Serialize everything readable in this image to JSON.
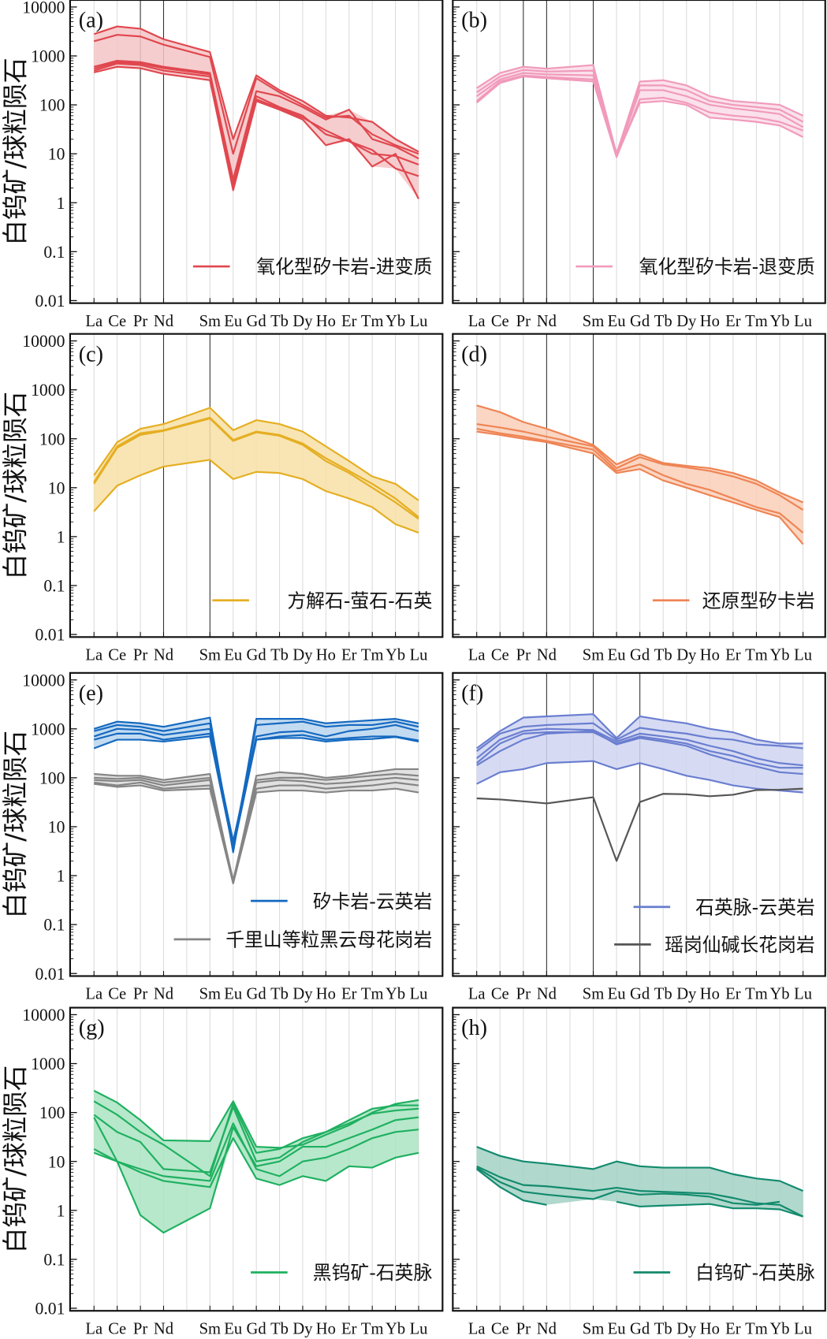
{
  "chart_data": [
    {
      "type": "line",
      "label": "(a)",
      "ylabel": "白钨矿/球粒陨石",
      "xlabel": "",
      "yscale": "log",
      "ylim": [
        0.01,
        10000
      ],
      "yticks": [
        "0.01",
        "0.1",
        "1",
        "10",
        "100",
        "1000",
        "10000"
      ],
      "categories": [
        "La",
        "Ce",
        "Pr",
        "Nd",
        "Sm",
        "Eu",
        "Gd",
        "Tb",
        "Dy",
        "Ho",
        "Er",
        "Tm",
        "Yb",
        "Lu"
      ],
      "groups": [
        {
          "name": "氧化型矽卡岩-进变质",
          "color": "#e0474f",
          "fill": "#f5c4c6",
          "series": [
            [
              2800,
              4000,
              3600,
              2200,
              1200,
              20,
              400,
              200,
              120,
              60,
              55,
              45,
              20,
              11
            ],
            [
              2000,
              2700,
              2500,
              1700,
              950,
              10,
              350,
              180,
              100,
              55,
              60,
              25,
              15,
              10
            ],
            [
              600,
              800,
              750,
              600,
              450,
              3,
              190,
              150,
              90,
              50,
              80,
              20,
              14,
              8
            ],
            [
              550,
              750,
              700,
              560,
              420,
              2.5,
              150,
              90,
              60,
              25,
              18,
              10,
              9,
              6
            ],
            [
              460,
              600,
              560,
              430,
              320,
              1.8,
              120,
              80,
              50,
              15,
              20,
              5.5,
              10,
              1.2
            ],
            [
              500,
              700,
              650,
              500,
              380,
              2.2,
              130,
              85,
              55,
              30,
              18,
              12,
              5,
              3.5
            ]
          ]
        }
      ]
    },
    {
      "type": "line",
      "label": "(b)",
      "ylabel": "",
      "xlabel": "",
      "yscale": "log",
      "ylim": [
        0.01,
        10000
      ],
      "categories": [
        "La",
        "Ce",
        "Pr",
        "Nd",
        "Sm",
        "Eu",
        "Gd",
        "Tb",
        "Dy",
        "Ho",
        "Er",
        "Tm",
        "Yb",
        "Lu"
      ],
      "groups": [
        {
          "name": "氧化型矽卡岩-退变质",
          "color": "#f19abb",
          "fill": "#fadce7",
          "series": [
            [
              220,
              450,
              600,
              550,
              650,
              10,
              300,
              320,
              250,
              150,
              120,
              110,
              100,
              60
            ],
            [
              180,
              380,
              520,
              480,
              500,
              9,
              250,
              250,
              200,
              120,
              100,
              90,
              80,
              45
            ],
            [
              150,
              330,
              450,
              420,
              400,
              9,
              200,
              200,
              150,
              100,
              85,
              75,
              65,
              35
            ],
            [
              120,
              300,
              400,
              370,
              330,
              8.5,
              130,
              140,
              110,
              70,
              60,
              55,
              45,
              30
            ],
            [
              110,
              280,
              380,
              350,
              300,
              9,
              110,
              120,
              100,
              55,
              50,
              45,
              38,
              22
            ]
          ]
        }
      ]
    },
    {
      "type": "line",
      "label": "(c)",
      "ylabel": "白钨矿/球粒陨石",
      "xlabel": "",
      "yscale": "log",
      "ylim": [
        0.01,
        10000
      ],
      "yticks": [
        "0.01",
        "0.1",
        "1",
        "10",
        "100",
        "1000",
        "10000"
      ],
      "categories": [
        "La",
        "Ce",
        "Pr",
        "Nd",
        "Sm",
        "Eu",
        "Gd",
        "Tb",
        "Dy",
        "Ho",
        "Er",
        "Tm",
        "Yb",
        "Lu"
      ],
      "groups": [
        {
          "name": "方解石-萤石-石英",
          "color": "#e5ae22",
          "fill": "#f7e0a6",
          "series": [
            [
              18,
              85,
              160,
              200,
              430,
              150,
              240,
              200,
              140,
              70,
              35,
              17,
              12,
              5.5
            ],
            [
              13,
              70,
              130,
              150,
              270,
              95,
              140,
              120,
              80,
              40,
              22,
              12,
              6,
              2.5
            ],
            [
              12,
              65,
              120,
              145,
              260,
              90,
              135,
              115,
              75,
              35,
              20,
              10,
              5,
              2.3
            ],
            [
              3.3,
              11,
              18,
              27,
              37,
              15,
              21,
              20,
              15,
              8.5,
              6,
              4,
              1.8,
              1.2
            ]
          ]
        }
      ]
    },
    {
      "type": "line",
      "label": "(d)",
      "ylabel": "",
      "xlabel": "",
      "yscale": "log",
      "ylim": [
        0.01,
        10000
      ],
      "categories": [
        "La",
        "Ce",
        "Pr",
        "Nd",
        "Sm",
        "Eu",
        "Gd",
        "Tb",
        "Dy",
        "Ho",
        "Er",
        "Tm",
        "Yb",
        "Lu"
      ],
      "groups": [
        {
          "name": "还原型矽卡岩",
          "color": "#ef8454",
          "fill": "#f9cfb8",
          "series": [
            [
              480,
              350,
              220,
              160,
              75,
              30,
              48,
              32,
              28,
              25,
              20,
              14,
              8,
              5
            ],
            [
              200,
              170,
              140,
              110,
              70,
              25,
              42,
              30,
              26,
              22,
              17,
              12,
              7,
              3.5
            ],
            [
              160,
              130,
              110,
              90,
              60,
              22,
              30,
              18,
              12,
              9,
              6,
              4,
              3,
              1.2
            ],
            [
              140,
              120,
              100,
              85,
              50,
              20,
              24,
              14,
              10,
              7,
              5,
              3.5,
              2.5,
              0.7
            ]
          ]
        }
      ]
    },
    {
      "type": "line",
      "label": "(e)",
      "ylabel": "白钨矿/球粒陨石",
      "xlabel": "",
      "yscale": "log",
      "ylim": [
        0.01,
        10000
      ],
      "yticks": [
        "0.01",
        "0.1",
        "1",
        "10",
        "100",
        "1000",
        "10000"
      ],
      "categories": [
        "La",
        "Ce",
        "Pr",
        "Nd",
        "Sm",
        "Eu",
        "Gd",
        "Tb",
        "Dy",
        "Ho",
        "Er",
        "Tm",
        "Yb",
        "Lu"
      ],
      "groups": [
        {
          "name": "矽卡岩-云英岩",
          "color": "#1469c0",
          "fill": "#b8d5ef",
          "series": [
            [
              1000,
              1400,
              1300,
              1100,
              1700,
              3,
              1600,
              1600,
              1600,
              1300,
              1400,
              1500,
              1600,
              1300
            ],
            [
              900,
              1200,
              1100,
              900,
              1300,
              4,
              1200,
              1300,
              1400,
              1100,
              1200,
              1200,
              1400,
              1100
            ],
            [
              700,
              1000,
              950,
              750,
              1000,
              5,
              700,
              850,
              900,
              700,
              900,
              1000,
              1200,
              900
            ],
            [
              600,
              800,
              800,
              600,
              800,
              4,
              600,
              700,
              750,
              600,
              650,
              700,
              700,
              580
            ],
            [
              400,
              600,
              600,
              550,
              700,
              3.5,
              600,
              650,
              650,
              550,
              600,
              620,
              680,
              550
            ]
          ]
        },
        {
          "name": "千里山等粒黑云母花岗岩",
          "color": "#858585",
          "fill": "#dcdcdc",
          "series": [
            [
              120,
              110,
              110,
              90,
              120,
              0.7,
              110,
              130,
              120,
              100,
              110,
              130,
              150,
              150
            ],
            [
              100,
              95,
              100,
              80,
              100,
              0.8,
              90,
              100,
              100,
              90,
              100,
              110,
              120,
              110
            ],
            [
              90,
              85,
              90,
              70,
              90,
              0.75,
              80,
              90,
              85,
              75,
              80,
              90,
              100,
              90
            ],
            [
              80,
              70,
              80,
              60,
              70,
              0.7,
              60,
              70,
              70,
              60,
              65,
              70,
              80,
              70
            ],
            [
              75,
              65,
              70,
              55,
              60,
              0.7,
              50,
              55,
              55,
              50,
              55,
              55,
              60,
              50
            ]
          ]
        }
      ]
    },
    {
      "type": "line",
      "label": "(f)",
      "ylabel": "",
      "xlabel": "",
      "yscale": "log",
      "ylim": [
        0.01,
        10000
      ],
      "categories": [
        "La",
        "Ce",
        "Pr",
        "Nd",
        "Sm",
        "Eu",
        "Gd",
        "Tb",
        "Dy",
        "Ho",
        "Er",
        "Tm",
        "Yb",
        "Lu"
      ],
      "groups": [
        {
          "name": "石英脉-云英岩",
          "color": "#6a7ed0",
          "fill": "#cfd5f1",
          "series": [
            [
              400,
              900,
              1700,
              1800,
              2000,
              650,
              1800,
              1500,
              1300,
              1000,
              850,
              600,
              500,
              500
            ],
            [
              350,
              800,
              1100,
              1200,
              1300,
              600,
              1050,
              900,
              800,
              650,
              600,
              480,
              450,
              400
            ],
            [
              250,
              600,
              900,
              1000,
              950,
              550,
              800,
              700,
              600,
              450,
              350,
              250,
              200,
              180
            ],
            [
              200,
              500,
              800,
              850,
              850,
              500,
              700,
              600,
              500,
              350,
              280,
              200,
              160,
              160
            ],
            [
              180,
              350,
              600,
              800,
              900,
              480,
              650,
              550,
              450,
              300,
              220,
              170,
              130,
              120
            ],
            [
              75,
              130,
              150,
              200,
              220,
              150,
              200,
              150,
              110,
              90,
              70,
              60,
              55,
              50
            ]
          ]
        },
        {
          "name": "瑶岗仙碱长花岗岩",
          "color": "#555555",
          "fill": "none",
          "series": [
            [
              38,
              36,
              33,
              30,
              40,
              2,
              32,
              47,
              46,
              42,
              45,
              56,
              57,
              60
            ]
          ]
        }
      ]
    },
    {
      "type": "line",
      "label": "(g)",
      "ylabel": "白钨矿/球粒陨石",
      "xlabel": "",
      "yscale": "log",
      "ylim": [
        0.01,
        10000
      ],
      "yticks": [
        "0.01",
        "0.1",
        "1",
        "10",
        "100",
        "1000",
        "10000"
      ],
      "categories": [
        "La",
        "Ce",
        "Pr",
        "Nd",
        "Sm",
        "Eu",
        "Gd",
        "Tb",
        "Dy",
        "Ho",
        "Er",
        "Tm",
        "Yb",
        "Lu"
      ],
      "groups": [
        {
          "name": "黑钨矿-石英脉",
          "color": "#1fb060",
          "fill": "#aae4c2",
          "series": [
            [
              280,
              160,
              70,
              27,
              26,
              170,
              20,
              19,
              22,
              35,
              55,
              100,
              150,
              180
            ],
            [
              170,
              90,
              40,
              22,
              5,
              150,
              15,
              18,
              30,
              40,
              70,
              120,
              140,
              140
            ],
            [
              90,
              40,
              25,
              7,
              6,
              130,
              10,
              12,
              25,
              40,
              60,
              95,
              110,
              120
            ],
            [
              80,
              10,
              0.8,
              0.35,
              1.1,
              50,
              8,
              10,
              20,
              20,
              30,
              45,
              70,
              80
            ],
            [
              18,
              10,
              7,
              5,
              4,
              60,
              7,
              5,
              10,
              12,
              18,
              30,
              40,
              45
            ],
            [
              15,
              10,
              6,
              4,
              3,
              30,
              4.5,
              3.3,
              5,
              4,
              8,
              7.5,
              12,
              15
            ]
          ]
        }
      ]
    },
    {
      "type": "line",
      "label": "(h)",
      "ylabel": "",
      "xlabel": "",
      "yscale": "log",
      "ylim": [
        0.01,
        10000
      ],
      "categories": [
        "La",
        "Ce",
        "Pr",
        "Nd",
        "Sm",
        "Eu",
        "Gd",
        "Tb",
        "Dy",
        "Ho",
        "Er",
        "Tm",
        "Yb",
        "Lu"
      ],
      "groups": [
        {
          "name": "白钨矿-石英脉",
          "color": "#128a6d",
          "fill": "#a2d1c4",
          "series": [
            [
              20,
              13,
              10,
              9,
              7,
              10,
              8,
              7.5,
              7.5,
              7.5,
              5.5,
              4.5,
              4,
              2.5
            ],
            [
              8,
              4.8,
              3.3,
              3.1,
              2.5,
              2.9,
              2.5,
              2.4,
              2.3,
              2.2,
              1.8,
              1.4,
              1.3,
              0.75
            ],
            [
              7.5,
              3.8,
              2.4,
              2.1,
              1.7,
              2.5,
              2.1,
              2.2,
              2.1,
              1.9,
              1.4,
              1.3,
              1.5,
              null
            ],
            [
              7,
              3,
              1.6,
              1.3,
              null,
              1.5,
              1.2,
              1.25,
              1.3,
              1.35,
              1.1,
              1.1,
              1.05,
              0.75
            ]
          ]
        }
      ]
    }
  ]
}
